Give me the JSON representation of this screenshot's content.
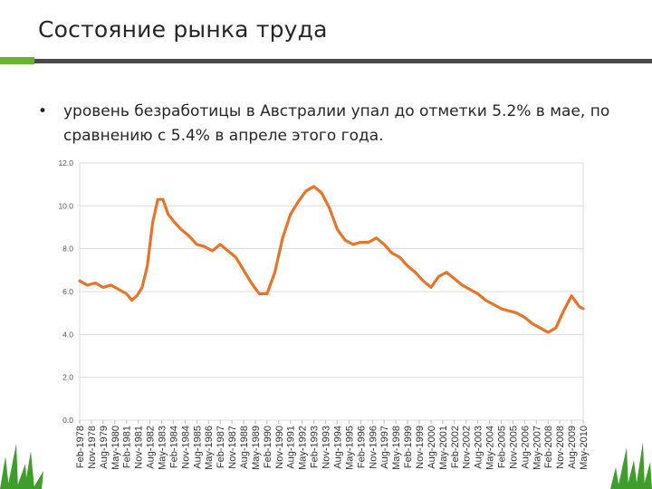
{
  "slide": {
    "title": "Состояние рынка труда",
    "bullet": "уровень безработицы в Австралии упал до отметки 5.2% в мае, по сравнению с 5.4% в апреле этого года.",
    "bullet_marker": "•",
    "colors": {
      "accent_green": "#67b32f",
      "rule_gray": "#4a4a4a",
      "series": "#e8742a",
      "grass": "#3f9d2b"
    }
  },
  "chart_data": {
    "type": "line",
    "ylim": [
      0,
      12
    ],
    "yticks": [
      "0.0",
      "2.0",
      "4.0",
      "6.0",
      "8.0",
      "10.0",
      "12.0"
    ],
    "xticks": [
      "Feb-1978",
      "Nov-1978",
      "Aug-1979",
      "May-1980",
      "Feb-1981",
      "Nov-1981",
      "Aug-1982",
      "May-1983",
      "Feb-1984",
      "Nov-1984",
      "Aug-1985",
      "May-1986",
      "Feb-1987",
      "Nov-1987",
      "Aug-1988",
      "May-1989",
      "Feb-1990",
      "Nov-1990",
      "Aug-1991",
      "May-1992",
      "Feb-1993",
      "Nov-1993",
      "Aug-1994",
      "May-1995",
      "Feb-1996",
      "Nov-1996",
      "Aug-1997",
      "May-1998",
      "Feb-1999",
      "Nov-1999",
      "Aug-2000",
      "May-2001",
      "Feb-2002",
      "Nov-2002",
      "Aug-2003",
      "May-2004",
      "Feb-2005",
      "Nov-2005",
      "Aug-2006",
      "May-2007",
      "Feb-2008",
      "Nov-2008",
      "Aug-2009",
      "May-2010"
    ],
    "grid": true,
    "legend": "none",
    "series": [
      {
        "x": [
          "1978-02",
          "1978-08",
          "1979-02",
          "1979-08",
          "1980-02",
          "1980-08",
          "1981-02",
          "1981-06",
          "1981-10",
          "1982-02",
          "1982-06",
          "1982-10",
          "1983-02",
          "1983-06",
          "1983-10",
          "1984-02",
          "1984-08",
          "1985-02",
          "1985-08",
          "1986-02",
          "1986-08",
          "1987-02",
          "1987-08",
          "1988-02",
          "1988-08",
          "1989-02",
          "1989-08",
          "1990-02",
          "1990-08",
          "1991-02",
          "1991-08",
          "1992-02",
          "1992-08",
          "1993-02",
          "1993-08",
          "1994-02",
          "1994-08",
          "1995-02",
          "1995-08",
          "1996-02",
          "1996-08",
          "1997-02",
          "1997-08",
          "1998-02",
          "1998-08",
          "1999-02",
          "1999-08",
          "2000-02",
          "2000-08",
          "2001-02",
          "2001-08",
          "2002-02",
          "2002-08",
          "2003-02",
          "2003-08",
          "2004-02",
          "2004-08",
          "2005-02",
          "2005-08",
          "2006-02",
          "2006-08",
          "2007-02",
          "2007-08",
          "2008-02",
          "2008-08",
          "2009-02",
          "2009-08",
          "2010-02",
          "2010-05"
        ],
        "y": [
          6.5,
          6.3,
          6.4,
          6.2,
          6.3,
          6.1,
          5.9,
          5.6,
          5.8,
          6.2,
          7.2,
          9.2,
          10.3,
          10.3,
          9.6,
          9.3,
          8.9,
          8.6,
          8.2,
          8.1,
          7.9,
          8.2,
          7.9,
          7.6,
          7.0,
          6.4,
          5.9,
          5.9,
          6.9,
          8.5,
          9.6,
          10.2,
          10.7,
          10.9,
          10.6,
          9.9,
          8.9,
          8.4,
          8.2,
          8.3,
          8.3,
          8.5,
          8.2,
          7.8,
          7.6,
          7.2,
          6.9,
          6.5,
          6.2,
          6.7,
          6.9,
          6.6,
          6.3,
          6.1,
          5.9,
          5.6,
          5.4,
          5.2,
          5.1,
          5.0,
          4.8,
          4.5,
          4.3,
          4.1,
          4.3,
          5.1,
          5.8,
          5.3,
          5.2
        ]
      }
    ]
  }
}
